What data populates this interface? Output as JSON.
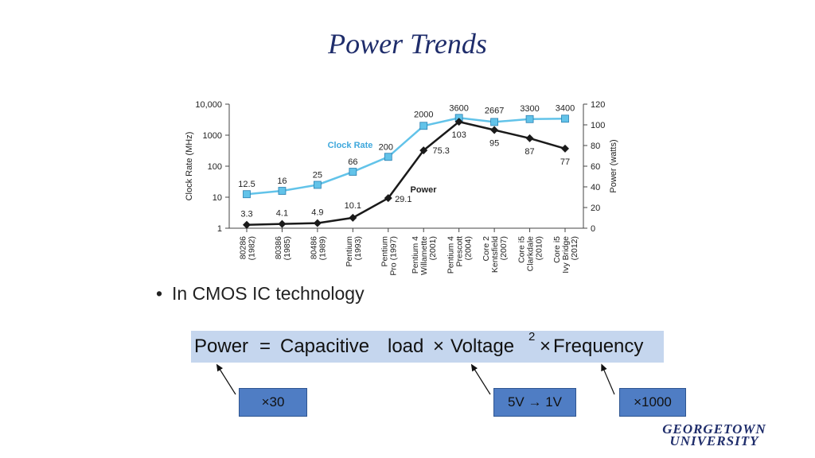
{
  "slide": {
    "title": "Power Trends",
    "bullet": "In CMOS IC technology",
    "formula": {
      "power": "Power",
      "eq": "=",
      "capacitive": "Capacitive",
      "load": "load",
      "times1": "×",
      "voltage": "Voltage",
      "exp": "2",
      "times2": "×",
      "frequency": "Frequency"
    },
    "factors": {
      "capacitive": "×30",
      "voltage": "5V → 1V",
      "frequency": "×1000"
    },
    "logo": {
      "line1": "GEORGETOWN",
      "line2": "UNIVERSITY"
    }
  },
  "chart_data": {
    "type": "line",
    "categories": [
      [
        "80286",
        "(1982)"
      ],
      [
        "80386",
        "(1985)"
      ],
      [
        "80486",
        "(1989)"
      ],
      [
        "Pentium",
        "(1993)"
      ],
      [
        "Pentium",
        "Pro (1997)"
      ],
      [
        "Pentium 4",
        "Willamette",
        "(2001)"
      ],
      [
        "Pentium 4",
        "Prescott",
        "(2004)"
      ],
      [
        "Core 2",
        "Kentsfield",
        "(2007)"
      ],
      [
        "Core i5",
        "Clarkdale",
        "(2010)"
      ],
      [
        "Core i5",
        "Ivy Bridge",
        "(2012)"
      ]
    ],
    "series": [
      {
        "name": "Clock Rate",
        "axis": "left",
        "scale": "log",
        "color": "#62c3e9",
        "marker": "square",
        "values": [
          12.5,
          16,
          25,
          66,
          200,
          2000,
          3600,
          2667,
          3300,
          3400
        ],
        "labels": [
          "12.5",
          "16",
          "25",
          "66",
          "200",
          "2000",
          "3600",
          "2667",
          "3300",
          "3400"
        ]
      },
      {
        "name": "Power",
        "axis": "right",
        "scale": "linear",
        "color": "#1a1a1a",
        "marker": "diamond",
        "values": [
          3.3,
          4.1,
          4.9,
          10.1,
          29.1,
          75.3,
          103,
          95,
          87,
          77
        ],
        "labels": [
          "3.3",
          "4.1",
          "4.9",
          "10.1",
          "29.1",
          "75.3",
          "103",
          "95",
          "87",
          "77"
        ]
      }
    ],
    "ylabel": "Clock Rate (MHz)",
    "y2label": "Power (watts)",
    "yticks": [
      "1",
      "10",
      "100",
      "1000",
      "10,000"
    ],
    "ylim": [
      1,
      10000
    ],
    "y2ticks": [
      "0",
      "20",
      "40",
      "60",
      "80",
      "100",
      "120"
    ],
    "y2lim": [
      0,
      120
    ],
    "grid": false
  }
}
